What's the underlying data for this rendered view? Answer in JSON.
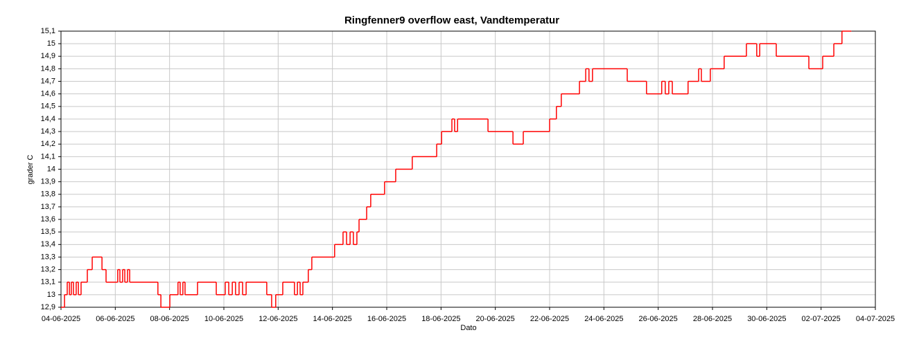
{
  "chart_data": {
    "type": "step-line",
    "title": "Ringfenner9 overflow east, Vandtemperatur",
    "x_label": "Dato",
    "y_label": "grader C",
    "color": "#ff0000",
    "grid": true,
    "xlim": [
      0,
      30
    ],
    "xticks": [
      {
        "value": 0,
        "label": "04-06-2025"
      },
      {
        "value": 2,
        "label": "06-06-2025"
      },
      {
        "value": 4,
        "label": "08-06-2025"
      },
      {
        "value": 6,
        "label": "10-06-2025"
      },
      {
        "value": 8,
        "label": "12-06-2025"
      },
      {
        "value": 10,
        "label": "14-06-2025"
      },
      {
        "value": 12,
        "label": "16-06-2025"
      },
      {
        "value": 14,
        "label": "18-06-2025"
      },
      {
        "value": 16,
        "label": "20-06-2025"
      },
      {
        "value": 18,
        "label": "22-06-2025"
      },
      {
        "value": 20,
        "label": "24-06-2025"
      },
      {
        "value": 22,
        "label": "26-06-2025"
      },
      {
        "value": 24,
        "label": "28-06-2025"
      },
      {
        "value": 26,
        "label": "30-06-2025"
      },
      {
        "value": 28,
        "label": "02-07-2025"
      },
      {
        "value": 30,
        "label": "04-07-2025"
      }
    ],
    "ylim": [
      12.9,
      15.1
    ],
    "yticks": [
      {
        "value": 12.9,
        "label": "12,9"
      },
      13,
      {
        "value": 13.1,
        "label": "13,1"
      },
      {
        "value": 13.2,
        "label": "13,2"
      },
      {
        "value": 13.3,
        "label": "13,3"
      },
      {
        "value": 13.4,
        "label": "13,4"
      },
      {
        "value": 13.5,
        "label": "13,5"
      },
      {
        "value": 13.6,
        "label": "13,6"
      },
      {
        "value": 13.7,
        "label": "13,7"
      },
      {
        "value": 13.8,
        "label": "13,8"
      },
      {
        "value": 13.9,
        "label": "13,9"
      },
      14,
      {
        "value": 14.1,
        "label": "14,1"
      },
      {
        "value": 14.2,
        "label": "14,2"
      },
      {
        "value": 14.3,
        "label": "14,3"
      },
      {
        "value": 14.4,
        "label": "14,4"
      },
      {
        "value": 14.5,
        "label": "14,5"
      },
      {
        "value": 14.6,
        "label": "14,6"
      },
      {
        "value": 14.7,
        "label": "14,7"
      },
      {
        "value": 14.8,
        "label": "14,8"
      },
      {
        "value": 14.9,
        "label": "14,9"
      },
      15,
      {
        "value": 15.1,
        "label": "15,1"
      }
    ],
    "x": [
      0,
      0.13,
      0.23,
      0.31,
      0.38,
      0.46,
      0.56,
      0.64,
      0.74,
      0.97,
      1.15,
      1.51,
      1.66,
      2.09,
      2.17,
      2.27,
      2.35,
      2.45,
      2.53,
      3.57,
      3.68,
      4.01,
      4.31,
      4.39,
      4.49,
      4.57,
      5.03,
      5.72,
      6.05,
      6.18,
      6.31,
      6.43,
      6.56,
      6.69,
      6.82,
      7.58,
      7.76,
      7.91,
      8.17,
      8.6,
      8.71,
      8.81,
      8.91,
      9.11,
      9.24,
      10.08,
      10.39,
      10.52,
      10.65,
      10.77,
      10.9,
      10.98,
      11.26,
      11.41,
      11.92,
      12.33,
      12.94,
      13.84,
      14.02,
      14.4,
      14.5,
      14.61,
      15.73,
      16.65,
      17.03,
      18.0,
      18.25,
      18.43,
      19.1,
      19.33,
      19.45,
      19.58,
      20.86,
      21.57,
      22.13,
      22.26,
      22.39,
      22.52,
      23.1,
      23.49,
      23.59,
      23.92,
      24.43,
      25.25,
      25.63,
      25.74,
      26.35,
      27.55,
      28.06,
      28.47,
      28.77,
      29.1
    ],
    "values": [
      12.9,
      13.0,
      13.1,
      13.0,
      13.1,
      13.0,
      13.1,
      13.0,
      13.1,
      13.2,
      13.3,
      13.2,
      13.1,
      13.2,
      13.1,
      13.2,
      13.1,
      13.2,
      13.1,
      13.0,
      12.9,
      13.0,
      13.1,
      13.0,
      13.1,
      13.0,
      13.1,
      13.0,
      13.1,
      13.0,
      13.1,
      13.0,
      13.1,
      13.0,
      13.1,
      13.0,
      12.9,
      13.0,
      13.1,
      13.0,
      13.1,
      13.0,
      13.1,
      13.2,
      13.3,
      13.4,
      13.5,
      13.4,
      13.5,
      13.4,
      13.5,
      13.6,
      13.7,
      13.8,
      13.9,
      14.0,
      14.1,
      14.2,
      14.3,
      14.4,
      14.3,
      14.4,
      14.3,
      14.2,
      14.3,
      14.4,
      14.5,
      14.6,
      14.7,
      14.8,
      14.7,
      14.8,
      14.7,
      14.6,
      14.7,
      14.6,
      14.7,
      14.6,
      14.7,
      14.8,
      14.7,
      14.8,
      14.9,
      15.0,
      14.9,
      15.0,
      14.9,
      14.8,
      14.9,
      15.0,
      15.1,
      15.1
    ]
  }
}
